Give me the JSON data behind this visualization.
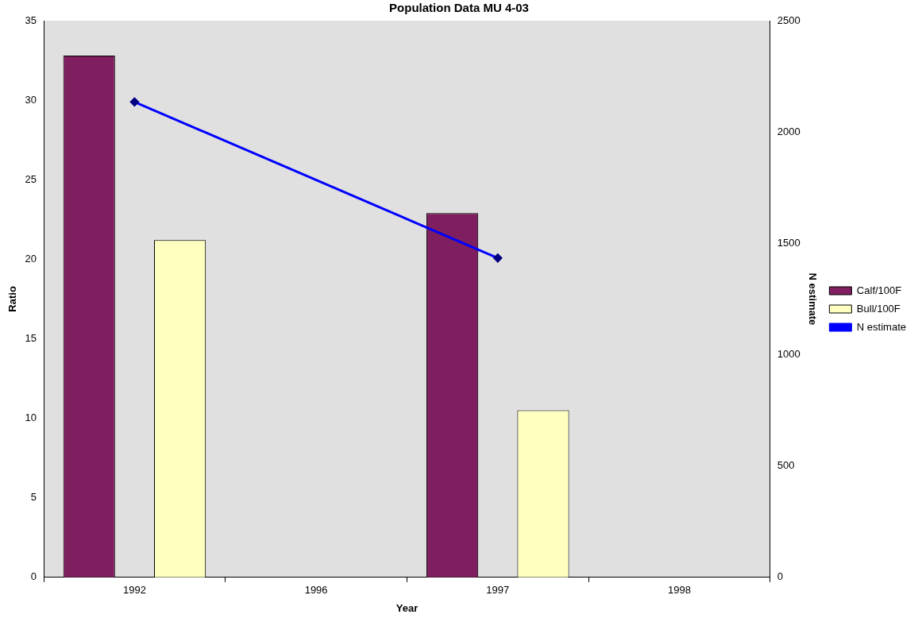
{
  "chart_data": {
    "type": "bar",
    "title": "Population Data MU 4-03",
    "xlabel": "Year",
    "ylabel": "Ratio",
    "y2label": "N estimate",
    "categories": [
      "1992",
      "1996",
      "1997",
      "1998"
    ],
    "series": [
      {
        "name": "Calf/100F",
        "color": "#7f1f5f",
        "values": [
          32.8,
          null,
          22.9,
          null
        ]
      },
      {
        "name": "Bull/100F",
        "color": "#ffffc0",
        "values": [
          21.2,
          null,
          10.5,
          null
        ]
      },
      {
        "name": "N estimate",
        "type": "line",
        "axis": "y2",
        "color": "#0000ff",
        "marker": "diamond",
        "values": [
          2135,
          null,
          1434,
          null
        ]
      }
    ],
    "ylim": [
      0,
      35
    ],
    "yticks": [
      0,
      5,
      10,
      15,
      20,
      25,
      30,
      35
    ],
    "y2lim": [
      0,
      2500
    ],
    "y2ticks": [
      0,
      500,
      1000,
      1500,
      2000,
      2500
    ],
    "grid": false,
    "legend": "right"
  }
}
